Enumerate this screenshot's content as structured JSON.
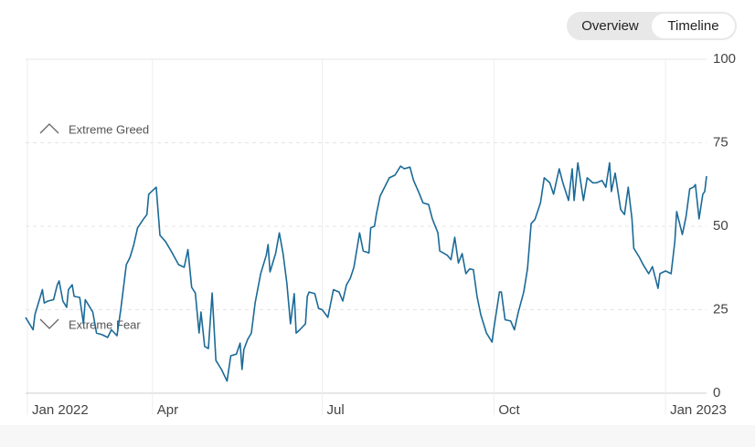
{
  "toggle": {
    "options": [
      "Overview",
      "Timeline"
    ]
  },
  "chart_data": {
    "type": "line",
    "color": "#1b6a97",
    "annotations": [
      "Extreme Greed",
      "Extreme Fear"
    ],
    "xlim": [
      22,
      387
    ],
    "xticks": [
      {
        "value": 0,
        "label": "Jan 2022"
      },
      {
        "value": 90,
        "label": "Apr"
      },
      {
        "value": 181,
        "label": "Jul"
      },
      {
        "value": 273,
        "label": "Oct"
      },
      {
        "value": 365,
        "label": "Jan 2023"
      }
    ],
    "ylim": [
      0,
      100
    ],
    "yticks": [
      0,
      25,
      50,
      75,
      100
    ],
    "grid": true,
    "x": [
      22,
      26,
      27,
      31,
      32,
      34,
      37,
      39,
      40,
      42,
      44,
      45,
      47,
      48,
      51,
      53,
      54,
      58,
      60,
      63,
      66,
      68,
      71,
      73,
      76,
      78,
      80,
      82,
      85,
      87,
      88,
      92,
      94,
      97,
      100,
      104,
      107,
      109,
      111,
      113,
      115,
      116,
      118,
      120,
      122,
      124,
      127,
      130,
      132,
      135,
      137,
      138,
      139,
      141,
      143,
      145,
      148,
      151,
      152,
      153,
      156,
      158,
      160,
      162,
      164,
      166,
      167,
      169,
      172,
      173,
      174,
      177,
      179,
      181,
      184,
      187,
      190,
      192,
      194,
      196,
      198,
      200,
      201,
      203,
      206,
      207,
      209,
      210,
      212,
      215,
      217,
      220,
      223,
      225,
      228,
      230,
      233,
      235,
      238,
      240,
      243,
      244,
      248,
      250,
      252,
      254,
      256,
      258,
      260,
      262,
      264,
      266,
      269,
      272,
      273,
      276,
      277,
      279,
      282,
      284,
      286,
      289,
      291,
      293,
      295,
      298,
      300,
      303,
      305,
      308,
      310,
      313,
      315,
      316,
      318,
      321,
      323,
      326,
      328,
      331,
      333,
      335,
      336,
      338,
      341,
      343,
      345,
      347,
      348,
      351,
      353,
      356,
      358,
      361,
      362,
      365,
      368,
      370,
      371,
      374,
      376,
      378,
      380,
      381,
      383,
      385,
      386,
      387
    ],
    "values": [
      22.7,
      19,
      23.5,
      31,
      27,
      27.6,
      28,
      32.5,
      33.6,
      27.6,
      25.7,
      31,
      32.5,
      29,
      28.7,
      20.8,
      28,
      24.3,
      18,
      17.5,
      16.7,
      19,
      17.2,
      25,
      38.5,
      40.7,
      44.5,
      49.5,
      52,
      53.5,
      59.6,
      61.7,
      47.3,
      45.4,
      42.6,
      38.5,
      37.7,
      43,
      31.7,
      30,
      18,
      24.3,
      14,
      13.4,
      30,
      9.8,
      7.1,
      3.6,
      11.2,
      11.7,
      15,
      7.1,
      13.1,
      16.1,
      18,
      27,
      35.8,
      41.3,
      44.5,
      36.3,
      41.8,
      48,
      41.8,
      33,
      20.8,
      29.8,
      18,
      19,
      20.8,
      29,
      30.3,
      29.8,
      25.4,
      25,
      22.7,
      31,
      30.3,
      27.6,
      32.5,
      34.4,
      37.7,
      44.5,
      48,
      42.6,
      42,
      49.5,
      50,
      53.5,
      59,
      62.3,
      64.5,
      65.3,
      68,
      67.2,
      67.7,
      63.7,
      59.8,
      57,
      56.5,
      52.2,
      48,
      42.6,
      41.3,
      40,
      46.7,
      39,
      41.8,
      35.8,
      37.2,
      37,
      29,
      23.5,
      18,
      15.3,
      19.4,
      30.3,
      30.3,
      22,
      21.6,
      19,
      24,
      30.3,
      37.2,
      50.8,
      52,
      57,
      64.5,
      63,
      59.6,
      67.2,
      63,
      57.7,
      67.2,
      57.7,
      69,
      57.7,
      64.5,
      63,
      63,
      63.7,
      61.7,
      69,
      60.4,
      65.9,
      55,
      53.5,
      61.7,
      52.2,
      43.4,
      40.7,
      38.5,
      35.8,
      37.9,
      31.4,
      35.8,
      36.6,
      35.8,
      45.4,
      54.4,
      47.5,
      52.8,
      61.2,
      61.7,
      62.5,
      52.2,
      59.6,
      60.4,
      65
    ]
  }
}
